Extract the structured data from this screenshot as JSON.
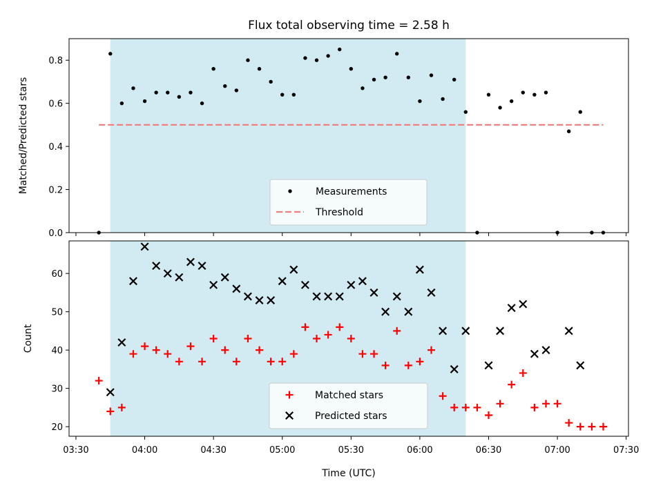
{
  "chart_data": {
    "title": "Flux total observing time = 2.58 h",
    "xlabel": "Time (UTC)",
    "x_ticks": [
      "03:30",
      "04:00",
      "04:30",
      "05:00",
      "05:30",
      "06:00",
      "06:30",
      "07:00",
      "07:30"
    ],
    "x_tick_minutes": [
      210,
      240,
      270,
      300,
      330,
      360,
      390,
      420,
      450
    ],
    "xlim": [
      "03:27",
      "07:31"
    ],
    "shaded_interval": [
      "03:45",
      "06:20"
    ],
    "colors": {
      "shade": "#add8e6",
      "measurement": "#000000",
      "threshold": "#f08080",
      "matched": "#ff0000",
      "predicted": "#000000"
    },
    "panels": [
      {
        "type": "scatter",
        "ylabel": "Matched/Predicted stars",
        "ylim": [
          0,
          0.9
        ],
        "y_ticks": [
          "0.0",
          "0.2",
          "0.4",
          "0.6",
          "0.8"
        ],
        "y_tick_values": [
          0,
          0.2,
          0.4,
          0.6,
          0.8
        ],
        "legend_position": "lower center",
        "series": [
          {
            "name": "Measurements",
            "marker": "dot",
            "points": [
              [
                "03:40",
                0.0
              ],
              [
                "03:45",
                0.83
              ],
              [
                "03:50",
                0.6
              ],
              [
                "03:55",
                0.67
              ],
              [
                "04:00",
                0.61
              ],
              [
                "04:05",
                0.65
              ],
              [
                "04:10",
                0.65
              ],
              [
                "04:15",
                0.63
              ],
              [
                "04:20",
                0.65
              ],
              [
                "04:25",
                0.6
              ],
              [
                "04:30",
                0.76
              ],
              [
                "04:35",
                0.68
              ],
              [
                "04:40",
                0.66
              ],
              [
                "04:45",
                0.8
              ],
              [
                "04:50",
                0.76
              ],
              [
                "04:55",
                0.7
              ],
              [
                "05:00",
                0.64
              ],
              [
                "05:05",
                0.64
              ],
              [
                "05:10",
                0.81
              ],
              [
                "05:15",
                0.8
              ],
              [
                "05:20",
                0.82
              ],
              [
                "05:25",
                0.85
              ],
              [
                "05:30",
                0.76
              ],
              [
                "05:35",
                0.67
              ],
              [
                "05:40",
                0.71
              ],
              [
                "05:45",
                0.72
              ],
              [
                "05:50",
                0.83
              ],
              [
                "05:55",
                0.72
              ],
              [
                "06:00",
                0.61
              ],
              [
                "06:05",
                0.73
              ],
              [
                "06:10",
                0.62
              ],
              [
                "06:15",
                0.71
              ],
              [
                "06:20",
                0.56
              ],
              [
                "06:25",
                0.0
              ],
              [
                "06:30",
                0.64
              ],
              [
                "06:35",
                0.58
              ],
              [
                "06:40",
                0.61
              ],
              [
                "06:45",
                0.65
              ],
              [
                "06:50",
                0.64
              ],
              [
                "06:55",
                0.65
              ],
              [
                "07:00",
                0.0
              ],
              [
                "07:05",
                0.47
              ],
              [
                "07:10",
                0.56
              ],
              [
                "07:15",
                0.0
              ],
              [
                "07:20",
                0.0
              ]
            ]
          },
          {
            "name": "Threshold",
            "style": "dashed-line",
            "points": [
              [
                "03:40",
                0.5
              ],
              [
                "07:20",
                0.5
              ]
            ]
          }
        ]
      },
      {
        "type": "scatter",
        "ylabel": "Count",
        "ylim": [
          17.5,
          68.5
        ],
        "y_ticks": [
          "20",
          "30",
          "40",
          "50",
          "60"
        ],
        "y_tick_values": [
          20,
          30,
          40,
          50,
          60
        ],
        "legend_position": "lower center",
        "series": [
          {
            "name": "Matched stars",
            "marker": "plus",
            "points": [
              [
                "03:40",
                32
              ],
              [
                "03:45",
                24
              ],
              [
                "03:50",
                25
              ],
              [
                "03:55",
                39
              ],
              [
                "04:00",
                41
              ],
              [
                "04:05",
                40
              ],
              [
                "04:10",
                39
              ],
              [
                "04:15",
                37
              ],
              [
                "04:20",
                41
              ],
              [
                "04:25",
                37
              ],
              [
                "04:30",
                43
              ],
              [
                "04:35",
                40
              ],
              [
                "04:40",
                37
              ],
              [
                "04:45",
                43
              ],
              [
                "04:50",
                40
              ],
              [
                "04:55",
                37
              ],
              [
                "05:00",
                37
              ],
              [
                "05:05",
                39
              ],
              [
                "05:10",
                46
              ],
              [
                "05:15",
                43
              ],
              [
                "05:20",
                44
              ],
              [
                "05:25",
                46
              ],
              [
                "05:30",
                43
              ],
              [
                "05:35",
                39
              ],
              [
                "05:40",
                39
              ],
              [
                "05:45",
                36
              ],
              [
                "05:50",
                45
              ],
              [
                "05:55",
                36
              ],
              [
                "06:00",
                37
              ],
              [
                "06:05",
                40
              ],
              [
                "06:10",
                28
              ],
              [
                "06:15",
                25
              ],
              [
                "06:20",
                25
              ],
              [
                "06:25",
                25
              ],
              [
                "06:30",
                23
              ],
              [
                "06:35",
                26
              ],
              [
                "06:40",
                31
              ],
              [
                "06:45",
                34
              ],
              [
                "06:50",
                25
              ],
              [
                "06:55",
                26
              ],
              [
                "07:00",
                26
              ],
              [
                "07:05",
                21
              ],
              [
                "07:10",
                20
              ],
              [
                "07:15",
                20
              ],
              [
                "07:20",
                20
              ]
            ]
          },
          {
            "name": "Predicted stars",
            "marker": "x",
            "points": [
              [
                "03:45",
                29
              ],
              [
                "03:50",
                42
              ],
              [
                "03:55",
                58
              ],
              [
                "04:00",
                67
              ],
              [
                "04:05",
                62
              ],
              [
                "04:10",
                60
              ],
              [
                "04:15",
                59
              ],
              [
                "04:20",
                63
              ],
              [
                "04:25",
                62
              ],
              [
                "04:30",
                57
              ],
              [
                "04:35",
                59
              ],
              [
                "04:40",
                56
              ],
              [
                "04:45",
                54
              ],
              [
                "04:50",
                53
              ],
              [
                "04:55",
                53
              ],
              [
                "05:00",
                58
              ],
              [
                "05:05",
                61
              ],
              [
                "05:10",
                57
              ],
              [
                "05:15",
                54
              ],
              [
                "05:20",
                54
              ],
              [
                "05:25",
                54
              ],
              [
                "05:30",
                57
              ],
              [
                "05:35",
                58
              ],
              [
                "05:40",
                55
              ],
              [
                "05:45",
                50
              ],
              [
                "05:50",
                54
              ],
              [
                "05:55",
                50
              ],
              [
                "06:00",
                61
              ],
              [
                "06:05",
                55
              ],
              [
                "06:10",
                45
              ],
              [
                "06:15",
                35
              ],
              [
                "06:20",
                45
              ],
              [
                "06:30",
                36
              ],
              [
                "06:35",
                45
              ],
              [
                "06:40",
                51
              ],
              [
                "06:45",
                52
              ],
              [
                "06:50",
                39
              ],
              [
                "06:55",
                40
              ],
              [
                "07:05",
                45
              ],
              [
                "07:10",
                36
              ]
            ]
          }
        ]
      }
    ]
  }
}
